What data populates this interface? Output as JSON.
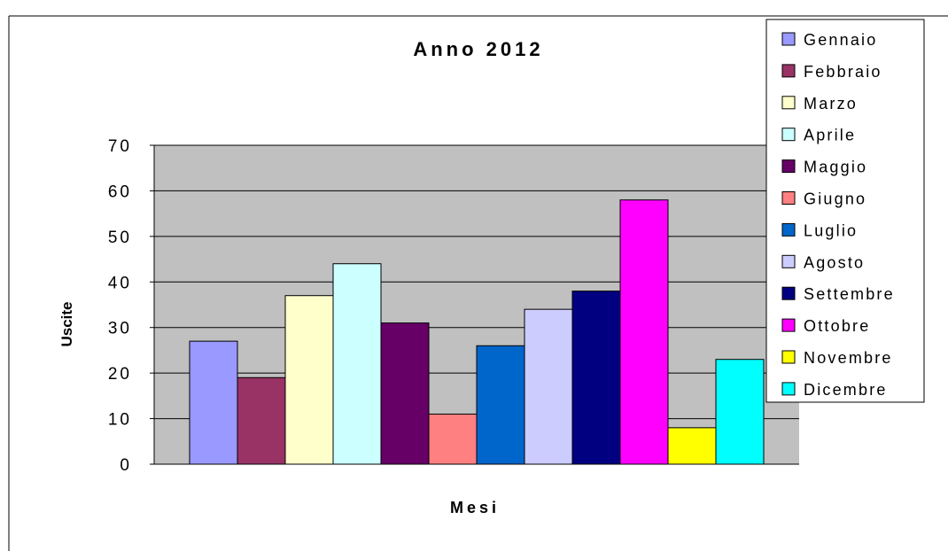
{
  "chart_data": {
    "type": "bar",
    "title": "Anno 2012",
    "xlabel": "Mesi",
    "ylabel": "Uscite",
    "ylim": [
      0,
      70
    ],
    "yticks": [
      0,
      10,
      20,
      30,
      40,
      50,
      60,
      70
    ],
    "grid": true,
    "legend_position": "right",
    "plot_background": "#c0c0c0",
    "series": [
      {
        "name": "Gennaio",
        "value": 27,
        "color": "#9999ff"
      },
      {
        "name": "Febbraio",
        "value": 19,
        "color": "#993366"
      },
      {
        "name": "Marzo",
        "value": 37,
        "color": "#ffffcc"
      },
      {
        "name": "Aprile",
        "value": 44,
        "color": "#ccffff"
      },
      {
        "name": "Maggio",
        "value": 31,
        "color": "#660066"
      },
      {
        "name": "Giugno",
        "value": 11,
        "color": "#ff8080"
      },
      {
        "name": "Luglio",
        "value": 26,
        "color": "#0066cc"
      },
      {
        "name": "Agosto",
        "value": 34,
        "color": "#ccccff"
      },
      {
        "name": "Settembre",
        "value": 38,
        "color": "#000080"
      },
      {
        "name": "Ottobre",
        "value": 58,
        "color": "#ff00ff"
      },
      {
        "name": "Novembre",
        "value": 8,
        "color": "#ffff00"
      },
      {
        "name": "Dicembre",
        "value": 23,
        "color": "#00ffff"
      }
    ]
  }
}
